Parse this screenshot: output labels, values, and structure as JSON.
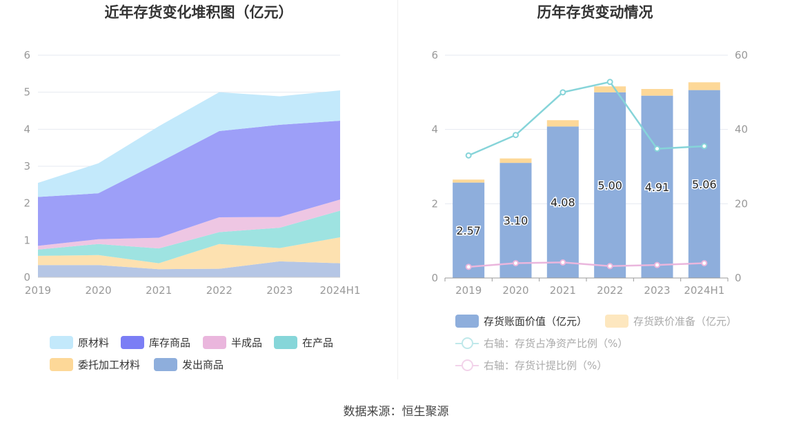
{
  "left": {
    "title": "近年存货变化堆积图（亿元）",
    "legend": [
      "原材料",
      "库存商品",
      "半成品",
      "在产品",
      "委托加工材料",
      "发出商品"
    ]
  },
  "right": {
    "title": "历年存货变动情况",
    "legend": [
      "存货账面价值（亿元）",
      "存货跌价准备（亿元）",
      "右轴：存货占净资产比例（%）",
      "右轴：存货计提比例（%）"
    ]
  },
  "source": "数据来源：恒生聚源",
  "colors": {
    "raw_material": "#c3e9fb",
    "inventory_goods": "#9d9ff8",
    "semi_finished": "#eec6e3",
    "wip": "#9ee3e1",
    "consigned": "#fde1b0",
    "shipped": "#b5c6e5",
    "book_value": "#8eaedc",
    "impairment": "#fdd898",
    "ratio_line": "#86d4d9",
    "provision_line": "#eab6dd"
  },
  "chart_data": [
    {
      "type": "area",
      "stacked": true,
      "title": "近年存货变化堆积图（亿元）",
      "x": [
        "2019",
        "2020",
        "2021",
        "2022",
        "2023",
        "2024H1"
      ],
      "ylim": [
        0,
        6
      ],
      "yticks": [
        0,
        1,
        2,
        3,
        4,
        5,
        6
      ],
      "grid": true,
      "legend_position": "bottom",
      "series": [
        {
          "name": "发出商品",
          "values": [
            0.33,
            0.33,
            0.22,
            0.23,
            0.43,
            0.38
          ]
        },
        {
          "name": "委托加工材料",
          "values": [
            0.25,
            0.27,
            0.16,
            0.67,
            0.36,
            0.7
          ]
        },
        {
          "name": "在产品",
          "values": [
            0.17,
            0.3,
            0.4,
            0.32,
            0.55,
            0.72
          ]
        },
        {
          "name": "半成品",
          "values": [
            0.1,
            0.13,
            0.29,
            0.4,
            0.29,
            0.3
          ]
        },
        {
          "name": "库存商品",
          "values": [
            1.32,
            1.24,
            2.03,
            2.33,
            2.49,
            2.13
          ]
        },
        {
          "name": "原材料",
          "values": [
            0.38,
            0.81,
            0.98,
            1.05,
            0.77,
            0.82
          ]
        }
      ]
    },
    {
      "type": "bar",
      "stacked": true,
      "title": "历年存货变动情况",
      "categories": [
        "2019",
        "2020",
        "2021",
        "2022",
        "2023",
        "2024H1"
      ],
      "ylim": [
        0,
        6
      ],
      "yticks": [
        0,
        2,
        4,
        6
      ],
      "y2lim": [
        0,
        60
      ],
      "y2ticks": [
        0,
        20,
        40,
        60
      ],
      "grid": true,
      "legend_position": "bottom",
      "series": [
        {
          "name": "存货账面价值（亿元）",
          "type": "bar",
          "values": [
            2.57,
            3.1,
            4.08,
            5.0,
            4.91,
            5.06
          ],
          "labels": [
            "2.57",
            "3.10",
            "4.08",
            "5.00",
            "4.91",
            "5.06"
          ]
        },
        {
          "name": "存货跌价准备（亿元）",
          "type": "bar",
          "values": [
            0.08,
            0.12,
            0.17,
            0.16,
            0.18,
            0.21
          ]
        },
        {
          "name": "右轴：存货占净资产比例（%）",
          "type": "line",
          "axis": "right",
          "values": [
            33.0,
            38.5,
            50.0,
            52.8,
            34.8,
            35.5
          ]
        },
        {
          "name": "右轴：存货计提比例（%）",
          "type": "line",
          "axis": "right",
          "values": [
            3.0,
            4.0,
            4.2,
            3.2,
            3.5,
            4.0
          ]
        }
      ]
    }
  ]
}
